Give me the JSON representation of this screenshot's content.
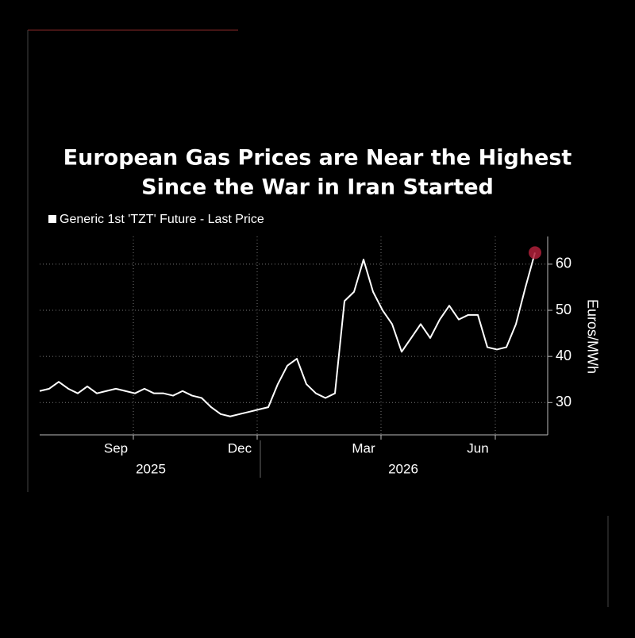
{
  "chart_data": {
    "type": "line",
    "title_lines": [
      "European Gas Prices are Near the Highest",
      "Since the War in Iran Started"
    ],
    "legend": "Generic 1st 'TZT' Future - Last Price",
    "y_label": "Euros/MWh",
    "years": [
      "2025",
      "2026"
    ],
    "categories": [
      null,
      null,
      null,
      null,
      null,
      null,
      null,
      null,
      "Sep",
      null,
      null,
      null,
      null,
      null,
      null,
      null,
      null,
      null,
      null,
      null,
      null,
      "Dec",
      null,
      null,
      null,
      null,
      null,
      null,
      null,
      null,
      null,
      null,
      null,
      null,
      "Mar",
      null,
      null,
      null,
      null,
      null,
      null,
      null,
      null,
      null,
      null,
      null,
      "Jun",
      null,
      null,
      null,
      null,
      null,
      null
    ],
    "series": [
      {
        "name": "Generic 1st 'TZT' Future - Last Price",
        "color": "#ffffff",
        "values": [
          32.5,
          33,
          34.5,
          33,
          32,
          33.5,
          32,
          32.5,
          33,
          32.5,
          32,
          33,
          32,
          32,
          31.5,
          32.5,
          31.5,
          31,
          29,
          27.5,
          27,
          27.5,
          28,
          28.5,
          29,
          34,
          38,
          39.5,
          34,
          32,
          31,
          32,
          52,
          54,
          61,
          54,
          50,
          47,
          41,
          44,
          47,
          44,
          48,
          51,
          48,
          49,
          49,
          42,
          41.5,
          42,
          47,
          55,
          62.5
        ]
      }
    ],
    "highlight_color": "#b0203a",
    "ylim": [
      23,
      66
    ],
    "yticks": [
      30,
      40,
      50,
      60
    ],
    "grid": true
  }
}
